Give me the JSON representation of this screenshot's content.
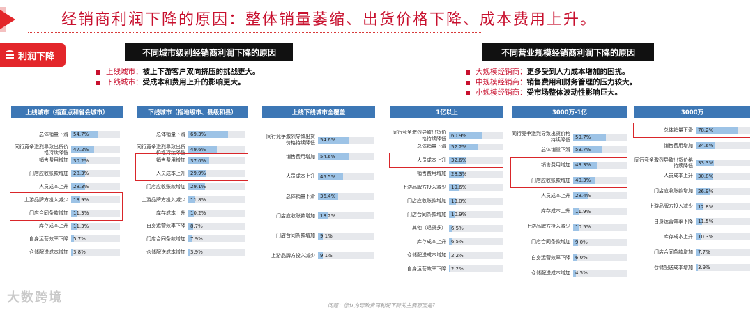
{
  "title": "经销商利润下降的原因：整体销量萎缩、出货价格下降、成本费用上升。",
  "badge": "利润下降",
  "left_section": {
    "header": "不同城市级别经销商利润下降的原因",
    "bullets": [
      {
        "key": "上线城市：",
        "value": "被上下游客户双向挤压的挑战更大。"
      },
      {
        "key": "下线城市：",
        "value": "受成本和费用上升的影响更大。"
      }
    ]
  },
  "right_section": {
    "header": "不同营业规模经销商利润下降的原因",
    "bullets": [
      {
        "key": "大规模经销商：",
        "value": "更多受到人力成本增加的困扰。"
      },
      {
        "key": "中规模经销商：",
        "value": "销售费用和财务管理的压力较大。"
      },
      {
        "key": "小规模经销商：",
        "value": "受市场整体波动性影响巨大。"
      }
    ]
  },
  "chart_data": [
    {
      "type": "bar",
      "title": "上线城市（指直点和省会城市）",
      "categories": [
        "总体销量下滑",
        "同行竞争激烈导致出货价格持续降低",
        "销售费用增加",
        "门店应收账款增加",
        "人员成本上升",
        "上游品牌方投入减少",
        "门店合同条款增加",
        "库存成本上升",
        "自身运营效率下降",
        "仓储配送成本增加"
      ],
      "values": [
        54.7,
        47.2,
        30.2,
        28.3,
        28.3,
        18.9,
        11.3,
        11.3,
        5.7,
        3.8
      ],
      "highlighted": [
        5,
        6
      ]
    },
    {
      "type": "bar",
      "title": "下线城市（指地级市、县级和县）",
      "categories": [
        "总体销量下滑",
        "同行竞争激烈导致出货价格持续降低",
        "销售费用增加",
        "人员成本上升",
        "门店应收账款增加",
        "上游品牌方投入减少",
        "库存成本上升",
        "自身运营效率下降",
        "门店合同条款增加",
        "仓储配送成本增加"
      ],
      "values": [
        69.3,
        49.6,
        37.0,
        29.9,
        29.1,
        11.8,
        10.2,
        8.7,
        7.9,
        3.9
      ],
      "highlighted": [
        2,
        3
      ]
    },
    {
      "type": "bar",
      "title": "上线下线城市全覆盖",
      "categories": [
        "同行竞争激烈导致出货价格持续降低",
        "销售费用增加",
        "人员成本上升",
        "总体销量下滑",
        "门店应收账款增加",
        "门店合同条款增加",
        "上游品牌方投入减少"
      ],
      "values": [
        54.6,
        54.6,
        45.5,
        36.4,
        18.2,
        9.1,
        9.1
      ],
      "highlighted": []
    },
    {
      "type": "bar",
      "title": "1亿以上",
      "categories": [
        "同行竞争激烈导致出货价格持续降低",
        "总体销量下滑",
        "人员成本上升",
        "销售费用增加",
        "上游品牌方投入减少",
        "门店应收账款增加",
        "门店合同条款增加",
        "其他（退货多）",
        "库存成本上升",
        "仓储配送成本增加",
        "自身运营效率下降"
      ],
      "values": [
        60.9,
        52.2,
        32.6,
        28.3,
        19.6,
        13.0,
        10.9,
        6.5,
        6.5,
        2.2,
        2.2
      ],
      "highlighted": [
        2
      ]
    },
    {
      "type": "bar",
      "title": "3000万-1亿",
      "categories": [
        "同行竞争激烈导致出货价格持续降低",
        "总体销量下滑",
        "销售费用增加",
        "门店应收账款增加",
        "人员成本上升",
        "库存成本上升",
        "上游品牌方投入减少",
        "门店合同条款增加",
        "自身运营效率下降",
        "仓储配送成本增加"
      ],
      "values": [
        59.7,
        53.7,
        43.3,
        40.3,
        28.4,
        11.9,
        10.5,
        9.0,
        6.0,
        4.5
      ],
      "highlighted": [
        2,
        3
      ]
    },
    {
      "type": "bar",
      "title": "3000万",
      "categories": [
        "总体销量下滑",
        "销售费用增加",
        "同行竞争激烈导致出货价格持续降低",
        "人员成本上升",
        "门店应收账款增加",
        "上游品牌方投入减少",
        "自身运营效率下降",
        "库存成本上升",
        "门店合同条款增加",
        "仓储配送成本增加"
      ],
      "values": [
        78.2,
        34.6,
        33.3,
        30.8,
        26.9,
        12.8,
        11.5,
        10.3,
        7.7,
        3.9
      ],
      "highlighted": [
        0
      ]
    }
  ],
  "watermark": "大数跨境",
  "question": "问题：您认为导致贵司利润下降的主要原因是?"
}
